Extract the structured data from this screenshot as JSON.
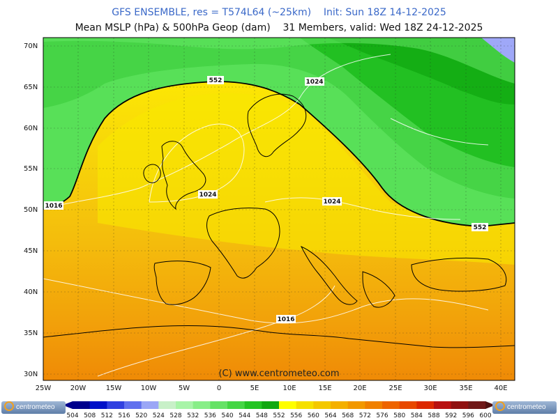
{
  "header": {
    "line1": "GFS ENSEMBLE, res = T574L64 (~25km)    Init: Sun 18Z 14-12-2025",
    "line2": "Mean MSLP (hPa) & 500hPa Geop (dam)    31 Members, valid: Wed 18Z 24-12-2025"
  },
  "map": {
    "lat_labels": [
      "70N",
      "65N",
      "60N",
      "55N",
      "50N",
      "45N",
      "40N",
      "35N",
      "30N"
    ],
    "lon_labels": [
      "25W",
      "20W",
      "15W",
      "10W",
      "5W",
      "0",
      "5E",
      "10E",
      "15E",
      "20E",
      "25E",
      "30E",
      "35E",
      "40E"
    ],
    "contour_labels": [
      "552",
      "1024",
      "1024",
      "1024",
      "1016",
      "1016",
      "552"
    ],
    "credit": "(C) www.centrometeo.com"
  },
  "colorbar": {
    "values": [
      "504",
      "508",
      "512",
      "516",
      "520",
      "524",
      "528",
      "532",
      "536",
      "540",
      "544",
      "548",
      "552",
      "556",
      "560",
      "564",
      "568",
      "572",
      "576",
      "580",
      "584",
      "588",
      "592",
      "596",
      "600"
    ],
    "colors": [
      "#00008c",
      "#0010c8",
      "#3040e0",
      "#6070ee",
      "#9aa6f6",
      "#c8f0c8",
      "#a8f4a8",
      "#88ee88",
      "#66e266",
      "#44d644",
      "#22c422",
      "#10a810",
      "#ffff00",
      "#f6e000",
      "#f4c800",
      "#f4b000",
      "#f29800",
      "#f08000",
      "#ee6400",
      "#e84800",
      "#dc2800",
      "#b81010",
      "#901010",
      "#701818",
      "#501010"
    ],
    "logo_text": "centrometeo"
  }
}
